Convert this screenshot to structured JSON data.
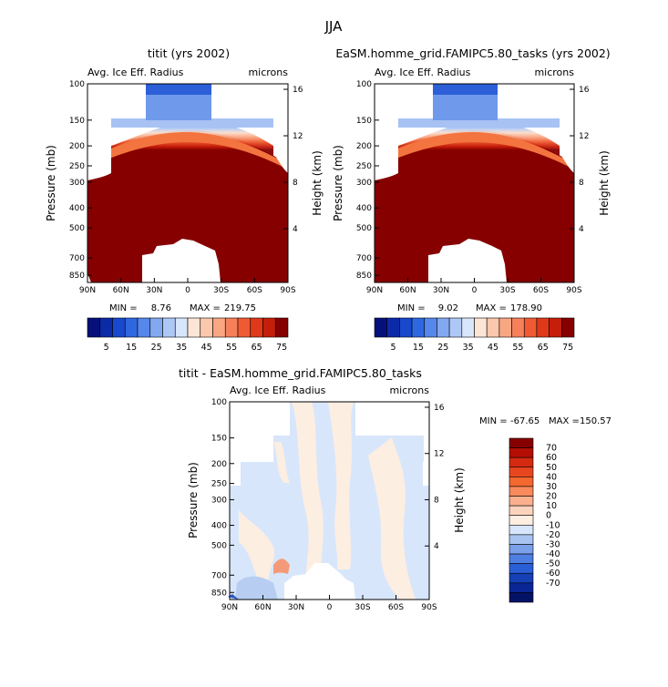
{
  "figure": {
    "title": "JJA"
  },
  "chart_data": [
    {
      "type": "heatmap",
      "title": "titit (yrs 2002)",
      "subtitle_left": "Avg. Ice Eff. Radius",
      "subtitle_right": "microns",
      "ylabel": "Pressure (mb)",
      "ylabel_right": "Height (km)",
      "xticks": [
        "90N",
        "60N",
        "30N",
        "0",
        "30S",
        "60S",
        "90S"
      ],
      "yticks": [
        "100",
        "150",
        "200",
        "250",
        "300",
        "400",
        "500",
        "700",
        "850"
      ],
      "yticks_right": [
        "16",
        "12",
        "8",
        "4"
      ],
      "stats": {
        "min_label": "MIN =",
        "min": "8.76",
        "max_label": "MAX =",
        "max": "219.75"
      },
      "colorbar": {
        "orientation": "horizontal",
        "labels": [
          "5",
          "15",
          "25",
          "35",
          "45",
          "55",
          "65",
          "75"
        ],
        "colors": [
          "#05107a",
          "#0b2aa8",
          "#1848cc",
          "#2f67e0",
          "#5588ea",
          "#82a8f0",
          "#aec8f6",
          "#d8e6fb",
          "#fde5d6",
          "#fbc8ac",
          "#f9a682",
          "#f5805a",
          "#ef5a33",
          "#e0381a",
          "#c51e0b",
          "#860000"
        ]
      },
      "field": "ice_radius_a"
    },
    {
      "type": "heatmap",
      "title": "EaSM.homme_grid.FAMIPC5.80_tasks (yrs 2002)",
      "subtitle_left": "Avg. Ice Eff. Radius",
      "subtitle_right": "microns",
      "ylabel": "Pressure (mb)",
      "ylabel_right": "Height (km)",
      "xticks": [
        "90N",
        "60N",
        "30N",
        "0",
        "30S",
        "60S",
        "90S"
      ],
      "yticks": [
        "100",
        "150",
        "200",
        "250",
        "300",
        "400",
        "500",
        "700",
        "850"
      ],
      "yticks_right": [
        "16",
        "12",
        "8",
        "4"
      ],
      "stats": {
        "min_label": "MIN =",
        "min": "9.02",
        "max_label": "MAX =",
        "max": "178.90"
      },
      "colorbar": {
        "orientation": "horizontal",
        "labels": [
          "5",
          "15",
          "25",
          "35",
          "45",
          "55",
          "65",
          "75"
        ],
        "colors": [
          "#05107a",
          "#0b2aa8",
          "#1848cc",
          "#2f67e0",
          "#5588ea",
          "#82a8f0",
          "#aec8f6",
          "#d8e6fb",
          "#fde5d6",
          "#fbc8ac",
          "#f9a682",
          "#f5805a",
          "#ef5a33",
          "#e0381a",
          "#c51e0b",
          "#860000"
        ]
      },
      "field": "ice_radius_b"
    },
    {
      "type": "heatmap",
      "title": "titit - EaSM.homme_grid.FAMIPC5.80_tasks",
      "subtitle_left": "Avg. Ice Eff. Radius",
      "subtitle_right": "microns",
      "ylabel": "Pressure (mb)",
      "ylabel_right": "Height (km)",
      "xticks": [
        "90N",
        "60N",
        "30N",
        "0",
        "30S",
        "60S",
        "90S"
      ],
      "yticks": [
        "100",
        "150",
        "200",
        "250",
        "300",
        "400",
        "500",
        "700",
        "850"
      ],
      "yticks_right": [
        "16",
        "12",
        "8",
        "4"
      ],
      "stats": {
        "min_label": "MIN =",
        "min": "-67.65",
        "max_label": "MAX =",
        "max": "150.57"
      },
      "colorbar": {
        "orientation": "vertical",
        "labels": [
          "70",
          "60",
          "50",
          "40",
          "30",
          "20",
          "10",
          "0",
          "-10",
          "-20",
          "-30",
          "-40",
          "-50",
          "-60",
          "-70"
        ],
        "colors": [
          "#860000",
          "#b50f05",
          "#d42a12",
          "#e8461f",
          "#f4672f",
          "#f88a5c",
          "#fab08e",
          "#fcd3bd",
          "#fdeee2",
          "#d8e6fb",
          "#a9c3f1",
          "#7aa0ea",
          "#4f7ee3",
          "#2b5fd8",
          "#1540b6",
          "#0a2695",
          "#041266"
        ]
      },
      "field": "difference"
    }
  ]
}
